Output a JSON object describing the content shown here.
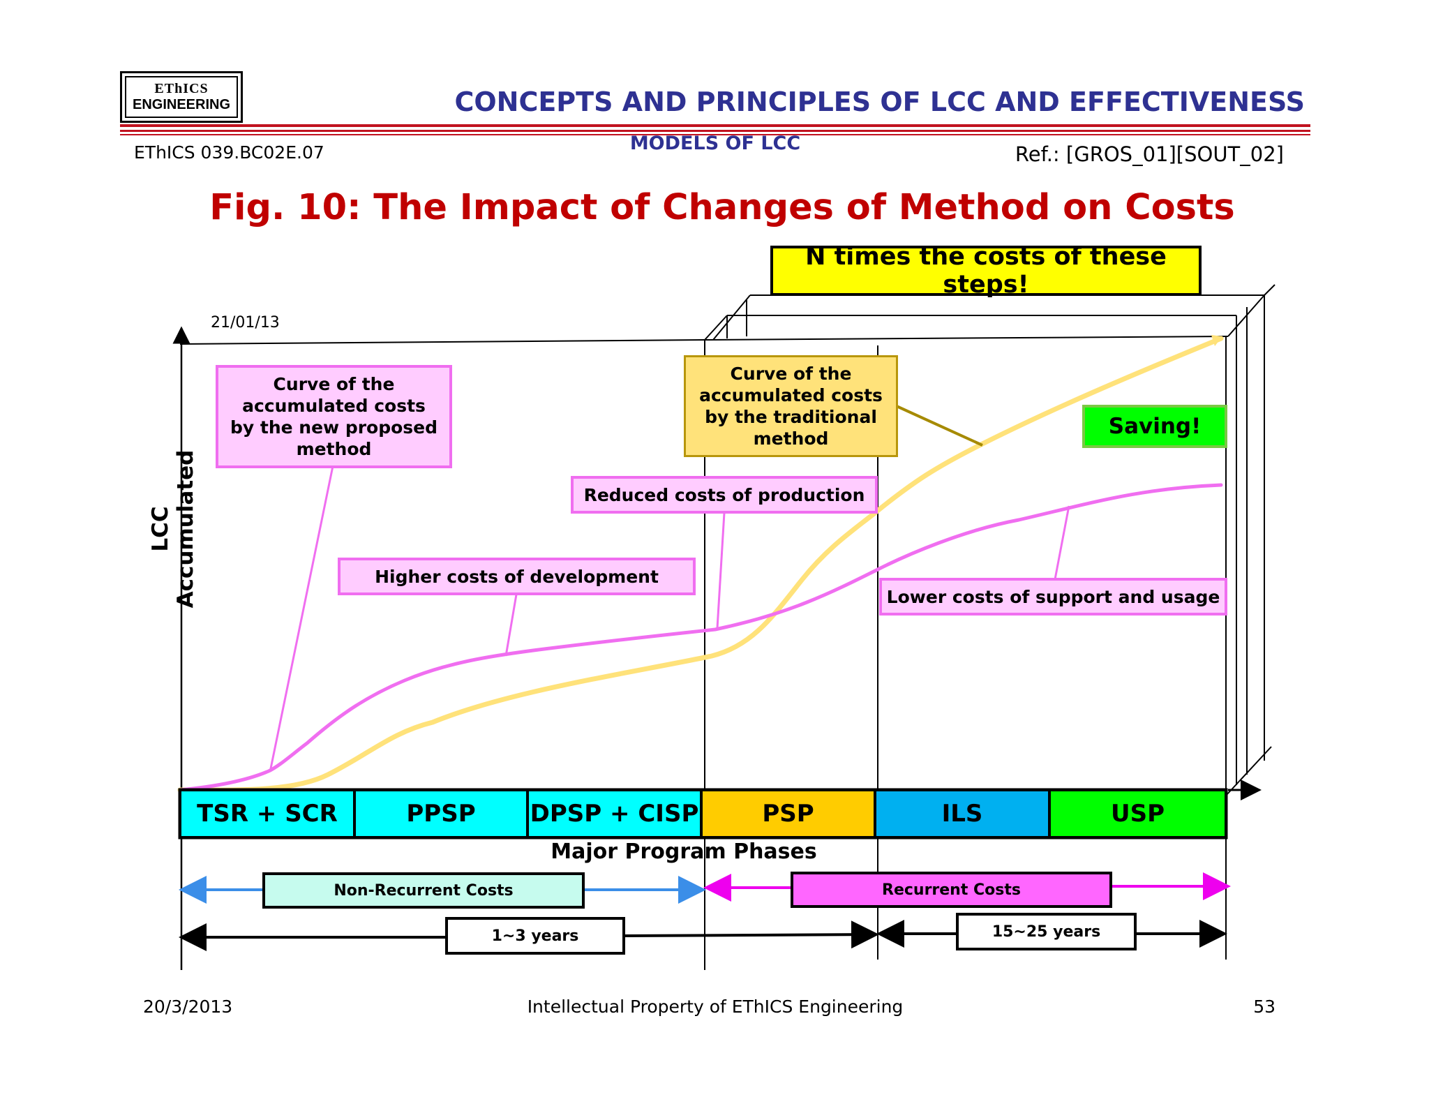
{
  "header": {
    "logo_line1": "EThICS",
    "logo_line2": "ENGINEERING",
    "title": "CONCEPTS AND PRINCIPLES OF LCC AND EFFECTIVENESS",
    "doc_id": "EThICS 039.BC02E.07",
    "subtitle": "MODELS OF LCC",
    "reference": "Ref.: [GROS_01][SOUT_02]"
  },
  "figure": {
    "title": "Fig. 10: The Impact of Changes of Method on Costs",
    "date_label": "21/01/13",
    "y_axis_label": "LCC Accumulated",
    "x_axis_label": "Major Program Phases",
    "callouts": {
      "n_times": "N times the costs of these steps!",
      "new_method_curve": "Curve of the accumulated costs by the new proposed method",
      "traditional_curve": "Curve of the accumulated costs by the traditional method",
      "saving": "Saving!",
      "reduced_production": "Reduced costs of production",
      "higher_development": "Higher costs of development",
      "lower_support": "Lower costs of support and usage"
    },
    "phases": [
      {
        "label": "TSR + SCR",
        "color": "#00ffff"
      },
      {
        "label": "PPSP",
        "color": "#00ffff"
      },
      {
        "label": "DPSP + CISP",
        "color": "#00ffff"
      },
      {
        "label": "PSP",
        "color": "#ffcc00"
      },
      {
        "label": "ILS",
        "color": "#00b0f0"
      },
      {
        "label": "USP",
        "color": "#00ff00"
      }
    ],
    "cost_types": {
      "non_recurrent": "Non-Recurrent Costs",
      "recurrent": "Recurrent Costs"
    },
    "durations": {
      "first": "1~3 years",
      "second": "15~25 years"
    },
    "colors": {
      "new_method_curve": "#f06ef0",
      "traditional_curve": "#ffe27a",
      "non_recurrent_arrow": "#3b8ee8",
      "recurrent_arrow": "#ee00ee"
    }
  },
  "footer": {
    "date": "20/3/2013",
    "center": "Intellectual Property of EThICS Engineering",
    "page": "53"
  }
}
